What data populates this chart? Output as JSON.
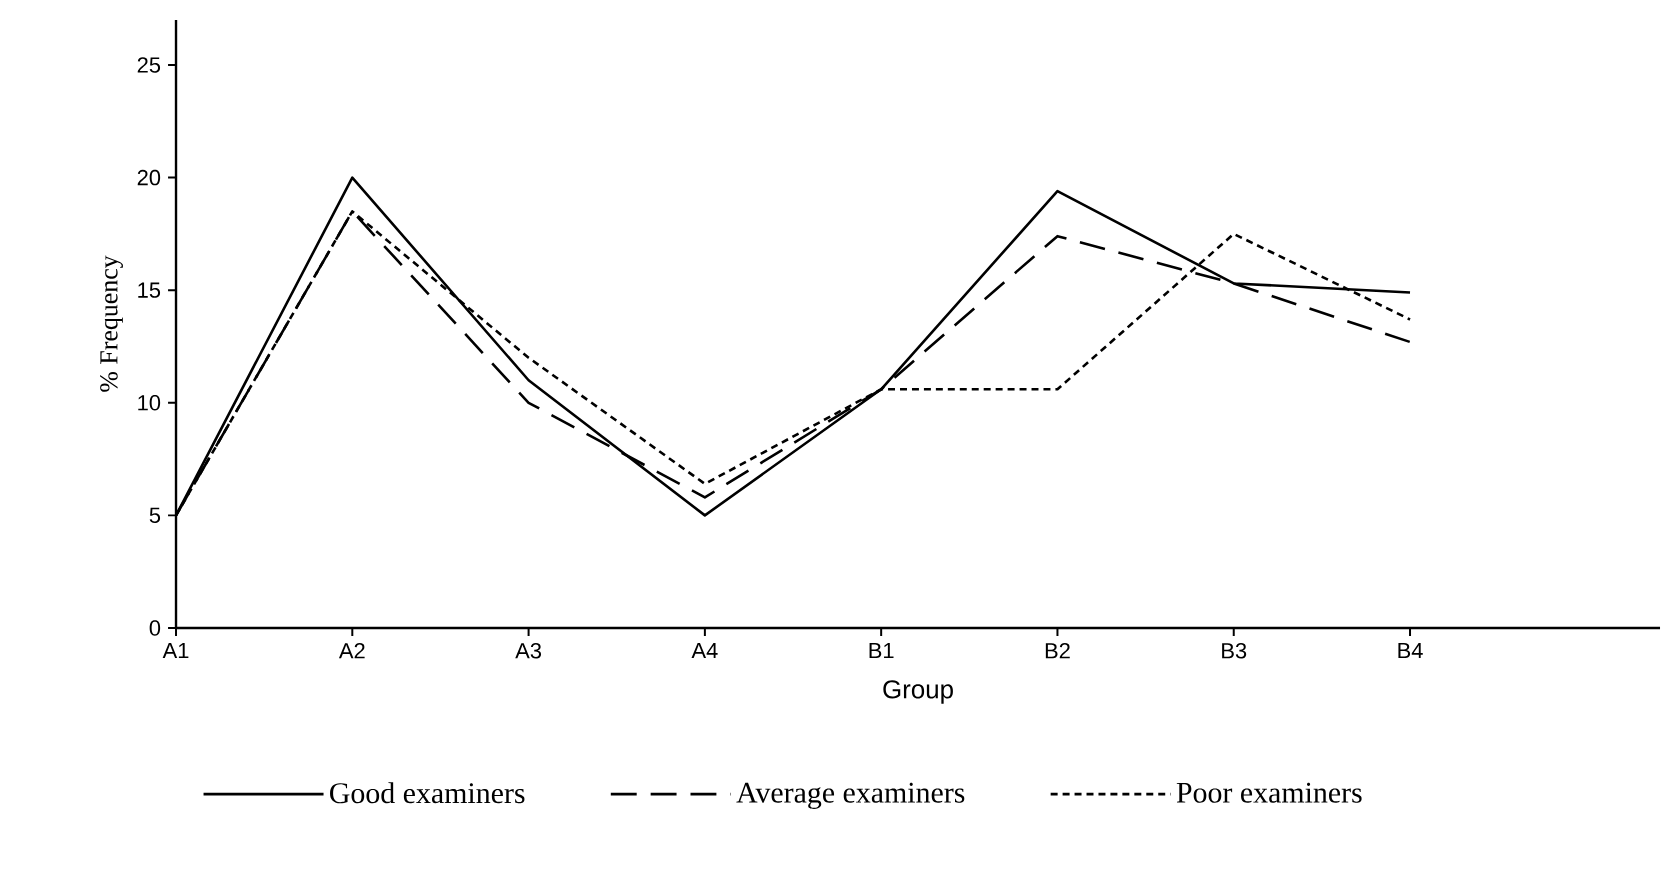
{
  "chart_data": {
    "type": "line",
    "xlabel": "Group",
    "ylabel": "% Frequency",
    "categories": [
      "A1",
      "A2",
      "A3",
      "A4",
      "B1",
      "B2",
      "B3",
      "B4"
    ],
    "ylim": [
      0,
      27
    ],
    "yticks": [
      0,
      5,
      10,
      15,
      20,
      25
    ],
    "grid": false,
    "legend": "bottom",
    "marker": "none",
    "series": [
      {
        "name": "Good examiners",
        "color": "#000000",
        "line_style": "solid",
        "values": [
          5,
          20,
          11,
          5,
          10.6,
          19.4,
          15.3,
          14.9
        ]
      },
      {
        "name": "Average examiners",
        "color": "#000000",
        "line_style": "dashed",
        "values": [
          5,
          18.5,
          10,
          5.8,
          10.6,
          17.4,
          15.3,
          12.7
        ]
      },
      {
        "name": "Poor examiners",
        "color": "#000000",
        "line_style": "dotted",
        "values": [
          5,
          18.5,
          12,
          6.4,
          10.6,
          10.6,
          17.5,
          13.7
        ]
      }
    ]
  }
}
